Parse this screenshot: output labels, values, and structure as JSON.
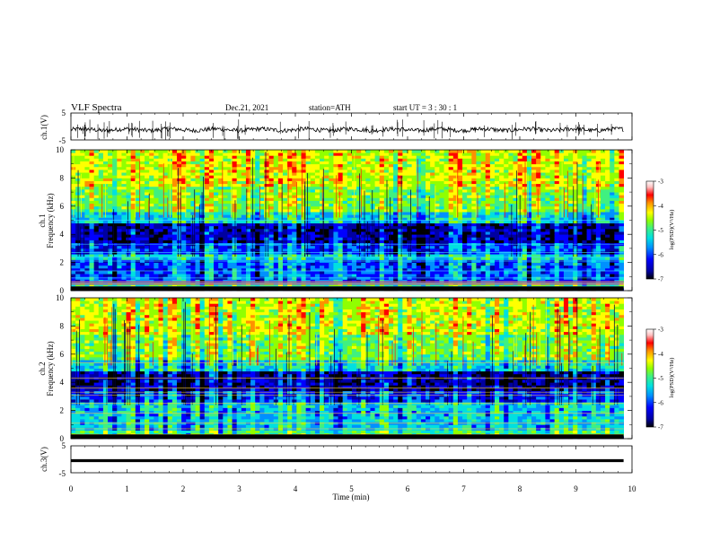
{
  "header": {
    "title": "VLF  Spectra",
    "date": "Dec.21, 2021",
    "station": "station=ATH",
    "start": "start  UT  =    3  : 30 : 1"
  },
  "colors": {
    "cmap": [
      "#000000",
      "#0000a0",
      "#0000ff",
      "#0090ff",
      "#00e0e0",
      "#40f080",
      "#90ff00",
      "#ffff00",
      "#ff9000",
      "#ff0000",
      "#ffc0c0",
      "#ffffff"
    ]
  },
  "chart_data": [
    {
      "type": "line",
      "name": "ch1-waveform",
      "ylabel": "ch.1(V)",
      "ylim": [
        -5,
        5
      ],
      "yticks": [
        "5",
        "-5"
      ],
      "x_range_min": [
        0,
        10
      ],
      "baseline": -1.2
    },
    {
      "type": "heatmap",
      "name": "ch1-spectrogram",
      "ylabel_top": "ch.1",
      "ylabel": "Frequency  (kHz)",
      "ylim": [
        0,
        10
      ],
      "yticks": [
        "0",
        "2",
        "4",
        "6",
        "8",
        "10"
      ],
      "colorbar": {
        "label": "log(PSD)(V²/Hz)",
        "range": [
          -7,
          -3
        ],
        "ticks": [
          "-3",
          "-4",
          "-5",
          "-6",
          "-7"
        ]
      }
    },
    {
      "type": "heatmap",
      "name": "ch2-spectrogram",
      "ylabel_top": "ch.2",
      "ylabel": "Frequency  (kHz)",
      "ylim": [
        0,
        10
      ],
      "yticks": [
        "0",
        "2",
        "4",
        "6",
        "8",
        "10"
      ],
      "colorbar": {
        "label": "log(PSD)(V²/Hz)",
        "range": [
          -7,
          -3
        ],
        "ticks": [
          "-3",
          "-4",
          "-5",
          "-6",
          "-7"
        ]
      }
    },
    {
      "type": "line",
      "name": "ch3-waveform",
      "ylabel": "ch.3(V)",
      "ylim": [
        -5,
        5
      ],
      "yticks": [
        "5",
        "-5"
      ],
      "baseline": -0.5
    }
  ],
  "x_axis": {
    "label": "Time  (min)",
    "range": [
      0,
      10
    ],
    "data_end": 9.85,
    "ticks": [
      "0",
      "1",
      "2",
      "3",
      "4",
      "5",
      "6",
      "7",
      "8",
      "9",
      "10"
    ]
  }
}
